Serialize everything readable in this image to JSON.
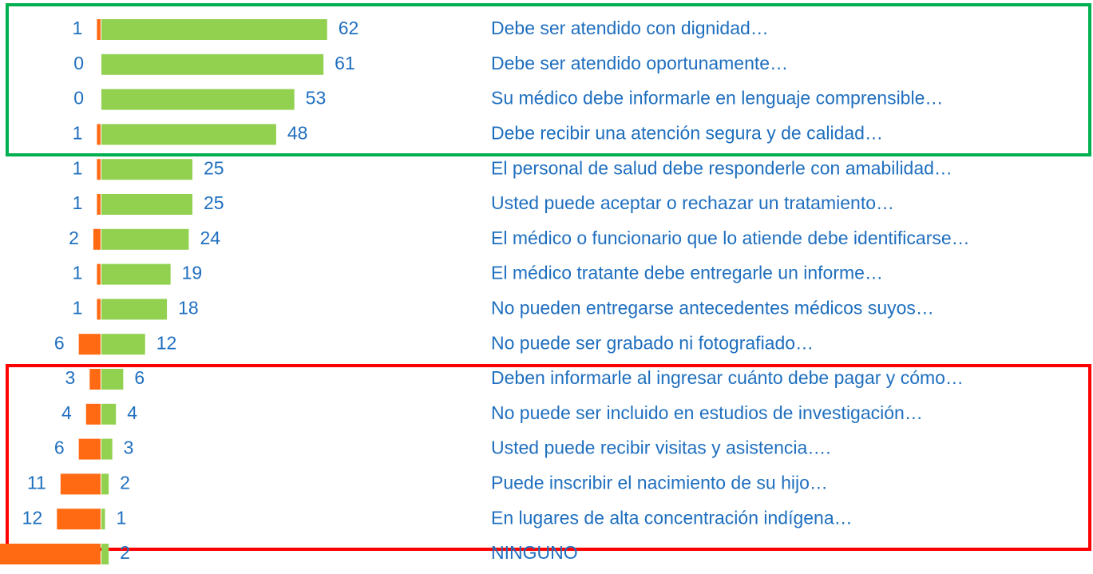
{
  "chart_data": {
    "type": "diverging-bar",
    "categories": [
      "Debe ser atendido con dignidad…",
      "Debe ser atendido oportunamente…",
      "Su médico debe informarle en lenguaje comprensible…",
      "Debe recibir una atención segura y de calidad…",
      "El personal de salud debe responderle con amabilidad…",
      "Usted puede aceptar o rechazar un tratamiento…",
      "El médico o funcionario que lo atiende debe identificarse…",
      "El médico tratante debe entregarle un informe…",
      "No pueden  entregarse antecedentes médicos suyos…",
      "No puede ser grabado ni fotografiado…",
      "Deben informarle al ingresar cuánto debe pagar y cómo…",
      "No puede ser incluido en estudios de investigación…",
      "Usted puede recibir visitas y asistencia….",
      "Puede inscribir el nacimiento de su hijo…",
      "En lugares de alta concentración  indígena…",
      "NINGUNO"
    ],
    "series": [
      {
        "color": "#ff6a13",
        "side": "left",
        "values": [
          1,
          0,
          0,
          1,
          1,
          1,
          2,
          1,
          1,
          6,
          3,
          4,
          6,
          11,
          12,
          28
        ],
        "value_labels": [
          "1",
          "0",
          "0",
          "1",
          "1",
          "1",
          "2",
          "1",
          "1",
          "6",
          "3",
          "4",
          "6",
          "11",
          "12",
          null
        ]
      },
      {
        "color": "#92d050",
        "side": "right",
        "values": [
          62,
          61,
          53,
          48,
          25,
          25,
          24,
          19,
          18,
          12,
          6,
          4,
          3,
          2,
          1,
          2
        ]
      }
    ]
  }
}
